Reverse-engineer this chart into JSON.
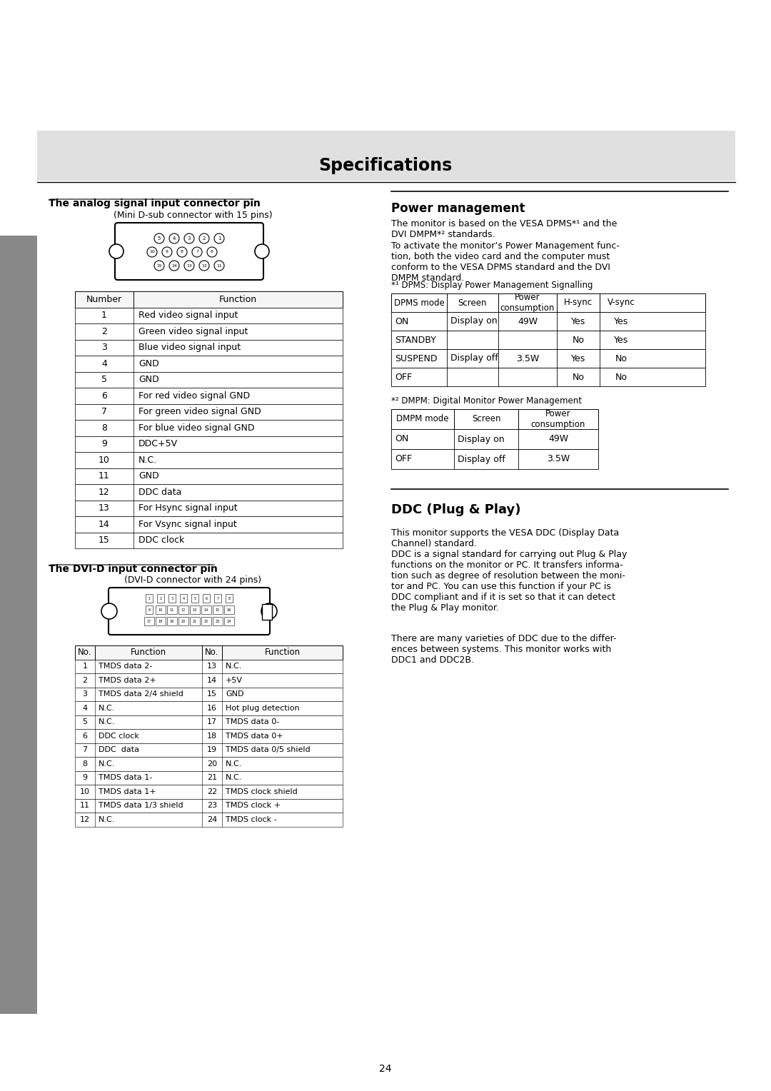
{
  "title": "Specifications",
  "page_number": "24",
  "background_color": "#ffffff",
  "header_bg_color": "#e0e0e0",
  "sidebar_color": "#888888",
  "analog_section": {
    "heading": "The analog signal input connector pin",
    "subheading": "(Mini D-sub connector with 15 pins)",
    "table_headers": [
      "Number",
      "Function"
    ],
    "table_rows": [
      [
        "1",
        "Red video signal input"
      ],
      [
        "2",
        "Green video signal input"
      ],
      [
        "3",
        "Blue video signal input"
      ],
      [
        "4",
        "GND"
      ],
      [
        "5",
        "GND"
      ],
      [
        "6",
        "For red video signal GND"
      ],
      [
        "7",
        "For green video signal GND"
      ],
      [
        "8",
        "For blue video signal GND"
      ],
      [
        "9",
        "DDC+5V"
      ],
      [
        "10",
        "N.C."
      ],
      [
        "11",
        "GND"
      ],
      [
        "12",
        "DDC data"
      ],
      [
        "13",
        "For Hsync signal input"
      ],
      [
        "14",
        "For Vsync signal input"
      ],
      [
        "15",
        "DDC clock"
      ]
    ]
  },
  "dvi_section": {
    "heading": "The DVI-D input connector pin",
    "subheading": "(DVI-D connector with 24 pins)",
    "table_rows": [
      [
        "1",
        "TMDS data 2-",
        "13",
        "N.C."
      ],
      [
        "2",
        "TMDS data 2+",
        "14",
        "+5V"
      ],
      [
        "3",
        "TMDS data 2/4 shield",
        "15",
        "GND"
      ],
      [
        "4",
        "N.C.",
        "16",
        "Hot plug detection"
      ],
      [
        "5",
        "N.C.",
        "17",
        "TMDS data 0-"
      ],
      [
        "6",
        "DDC clock",
        "18",
        "TMDS data 0+"
      ],
      [
        "7",
        "DDC  data",
        "19",
        "TMDS data 0/5 shield"
      ],
      [
        "8",
        "N.C.",
        "20",
        "N.C."
      ],
      [
        "9",
        "TMDS data 1-",
        "21",
        "N.C."
      ],
      [
        "10",
        "TMDS data 1+",
        "22",
        "TMDS clock shield"
      ],
      [
        "11",
        "TMDS data 1/3 shield",
        "23",
        "TMDS clock +"
      ],
      [
        "12",
        "N.C.",
        "24",
        "TMDS clock -"
      ]
    ]
  },
  "power_section": {
    "heading": "Power management",
    "paragraph1": "The monitor is based on the VESA DPMS*¹ and the\nDVI DMPM*² standards.",
    "paragraph2": "To activate the monitor’s Power Management func-\ntion, both the video card and the computer must\nconform to the VESA DPMS standard and the DVI\nDMPM standard.",
    "footnote1": "*¹ DPMS: Display Power Management Signalling",
    "dpms_table": {
      "headers": [
        "DPMS mode",
        "Screen",
        "Power\nconsumption",
        "H-sync",
        "V-sync"
      ],
      "rows": [
        [
          "ON",
          "Display on",
          "49W",
          "Yes",
          "Yes"
        ],
        [
          "STANDBY",
          "",
          "",
          "No",
          "Yes"
        ],
        [
          "SUSPEND",
          "Display off",
          "3.5W",
          "Yes",
          "No"
        ],
        [
          "OFF",
          "",
          "",
          "No",
          "No"
        ]
      ]
    },
    "footnote2": "*² DMPM: Digital Monitor Power Management",
    "dmpm_table": {
      "headers": [
        "DMPM mode",
        "Screen",
        "Power\nconsumption"
      ],
      "rows": [
        [
          "ON",
          "Display on",
          "49W"
        ],
        [
          "OFF",
          "Display off",
          "3.5W"
        ]
      ]
    }
  },
  "ddc_section": {
    "heading": "DDC (Plug & Play)",
    "paragraph1": "This monitor supports the VESA DDC (Display Data\nChannel) standard.",
    "paragraph2": "DDC is a signal standard for carrying out Plug & Play\nfunctions on the monitor or PC. It transfers informa-\ntion such as degree of resolution between the moni-\ntor and PC. You can use this function if your PC is\nDDC compliant and if it is set so that it can detect\nthe Plug & Play monitor.",
    "paragraph3": "There are many varieties of DDC due to the differ-\nences between systems. This monitor works with\nDDC1 and DDC2B."
  }
}
